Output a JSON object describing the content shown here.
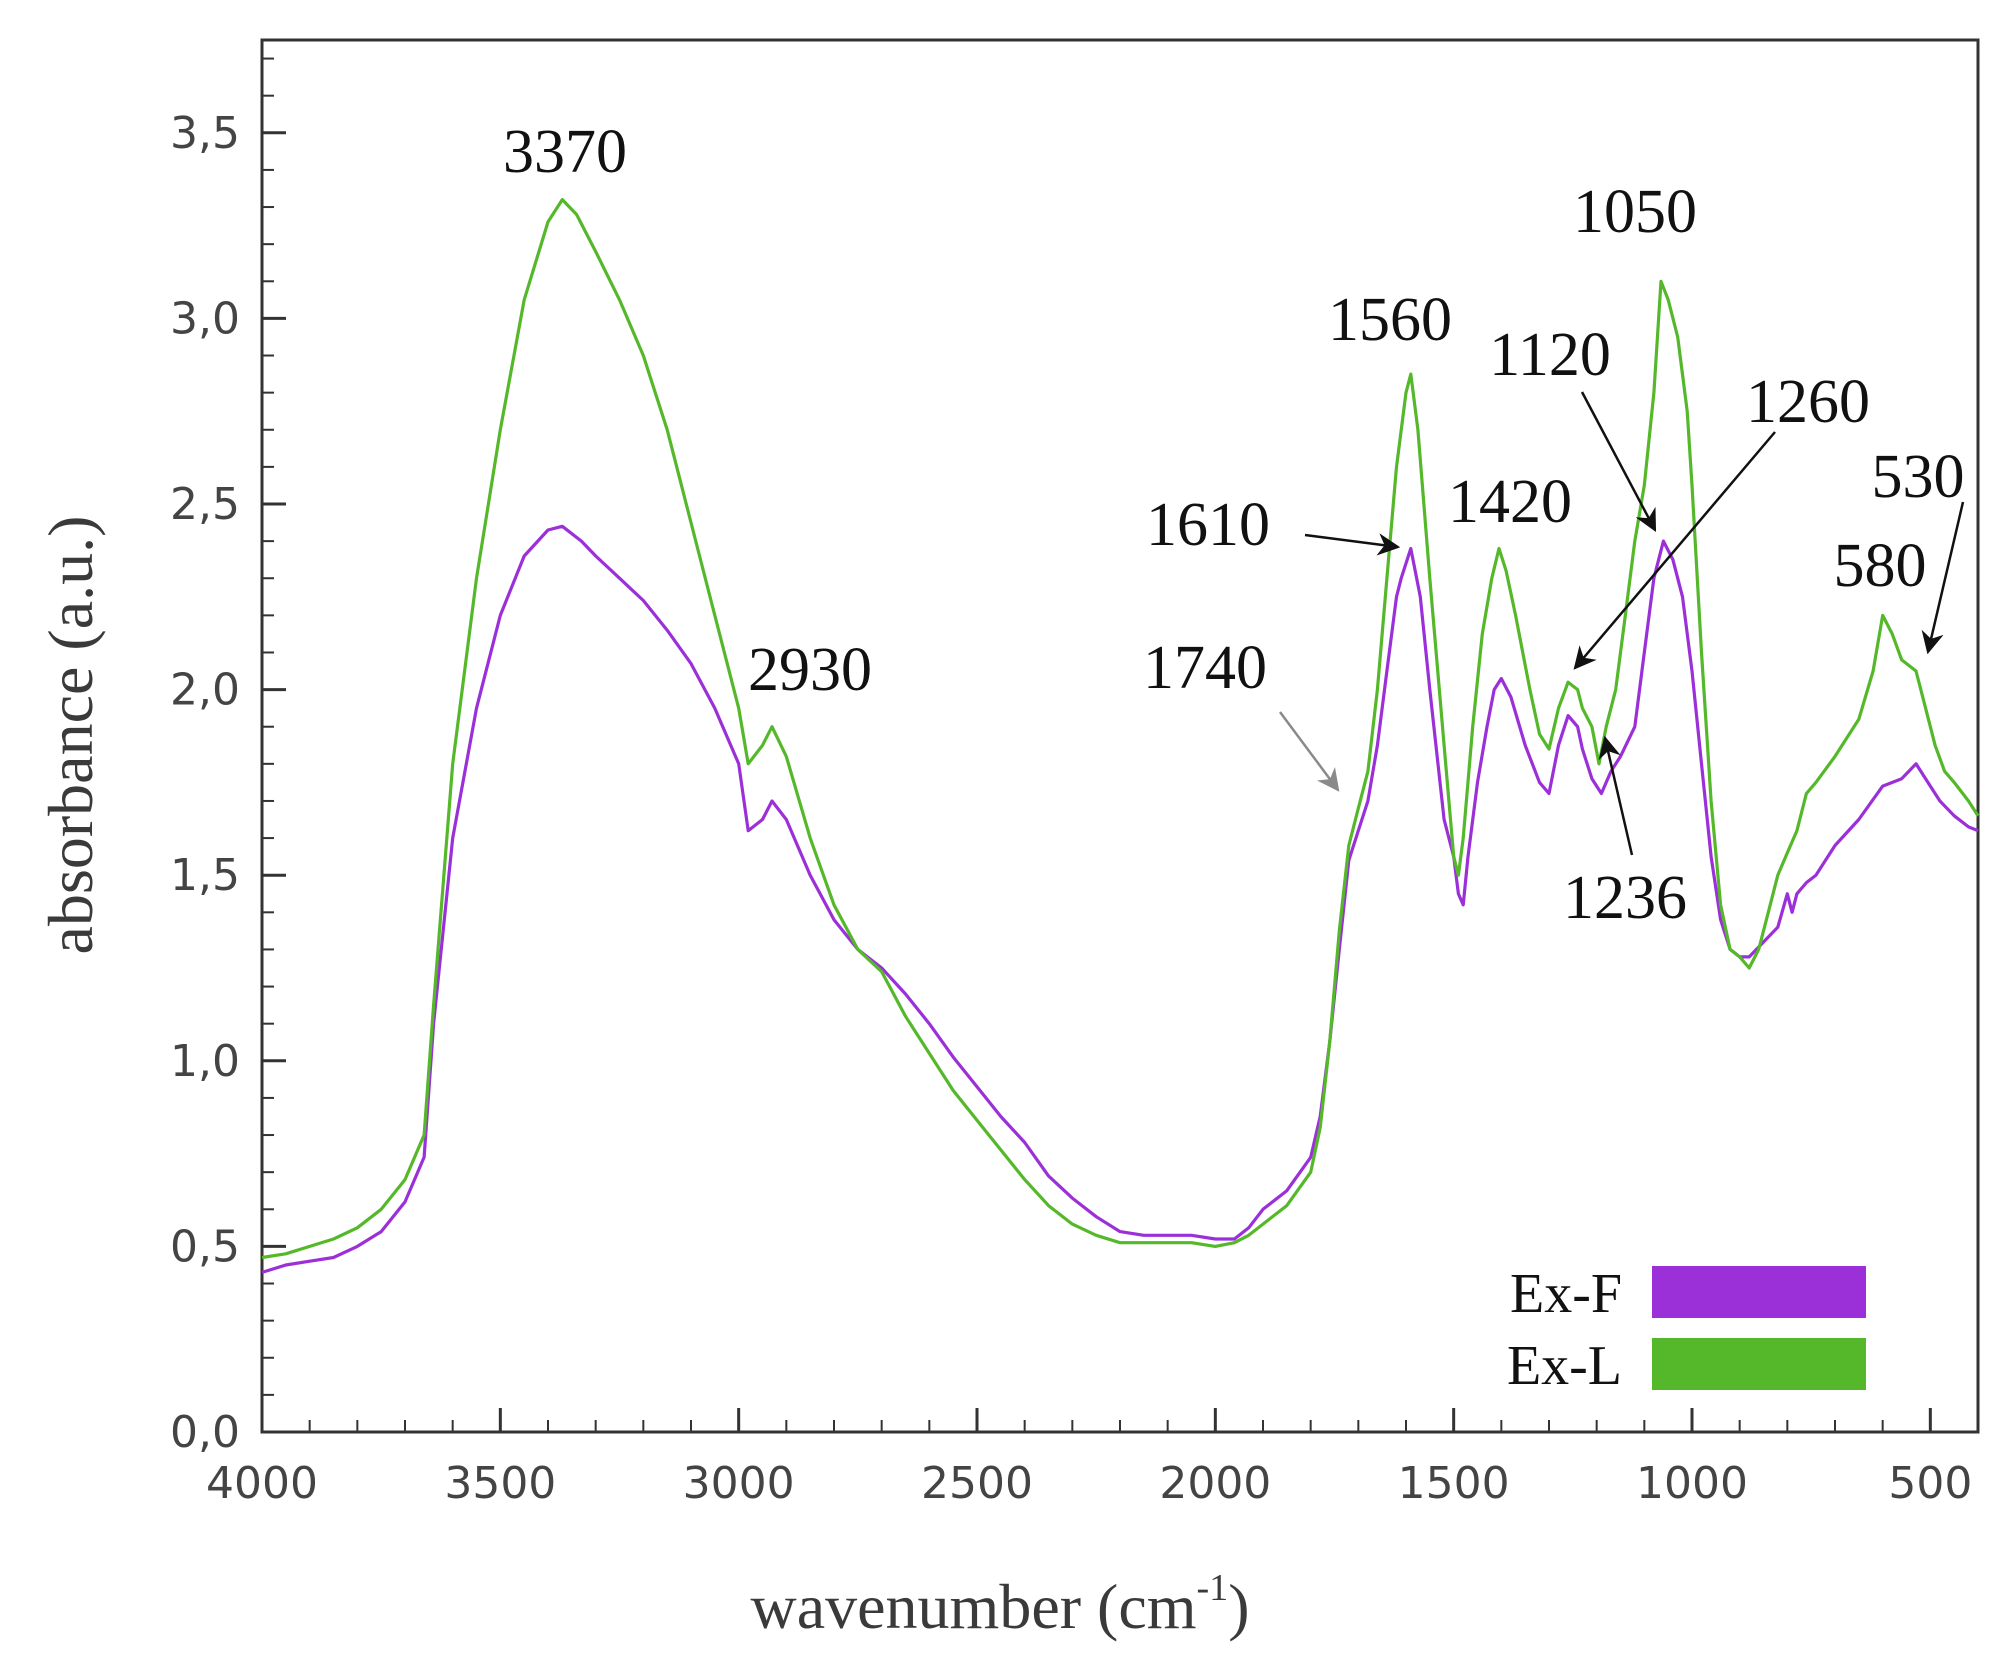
{
  "chart_data": {
    "type": "line",
    "xlabel": "wavenumber (cm",
    "xlabel_sup": "-1",
    "xlabel_close": ")",
    "ylabel": "absorbance (a.u.)",
    "xlim": [
      4000,
      400
    ],
    "ylim": [
      0.0,
      3.75
    ],
    "x_reversed": true,
    "grid": false,
    "legend_position": "bottom-right",
    "x_ticks": [
      {
        "value": 4000,
        "label": "4000"
      },
      {
        "value": 3500,
        "label": "3500"
      },
      {
        "value": 3000,
        "label": "3000"
      },
      {
        "value": 2500,
        "label": "2500"
      },
      {
        "value": 2000,
        "label": "2000"
      },
      {
        "value": 1500,
        "label": "1500"
      },
      {
        "value": 1000,
        "label": "1000"
      },
      {
        "value": 500,
        "label": "500"
      }
    ],
    "y_ticks": [
      {
        "value": 0.0,
        "label": "0,0"
      },
      {
        "value": 0.5,
        "label": "0,5"
      },
      {
        "value": 1.0,
        "label": "1,0"
      },
      {
        "value": 1.5,
        "label": "1,5"
      },
      {
        "value": 2.0,
        "label": "2,0"
      },
      {
        "value": 2.5,
        "label": "2,5"
      },
      {
        "value": 3.0,
        "label": "3,0"
      },
      {
        "value": 3.5,
        "label": "3,5"
      }
    ],
    "series": [
      {
        "name": "Ex-F",
        "color": "#9b30d9",
        "points": [
          [
            4000,
            0.43
          ],
          [
            3950,
            0.45
          ],
          [
            3900,
            0.46
          ],
          [
            3850,
            0.47
          ],
          [
            3800,
            0.5
          ],
          [
            3750,
            0.54
          ],
          [
            3700,
            0.62
          ],
          [
            3660,
            0.74
          ],
          [
            3640,
            1.1
          ],
          [
            3600,
            1.6
          ],
          [
            3550,
            1.95
          ],
          [
            3500,
            2.2
          ],
          [
            3450,
            2.36
          ],
          [
            3400,
            2.43
          ],
          [
            3370,
            2.44
          ],
          [
            3330,
            2.4
          ],
          [
            3300,
            2.36
          ],
          [
            3250,
            2.3
          ],
          [
            3200,
            2.24
          ],
          [
            3150,
            2.16
          ],
          [
            3100,
            2.07
          ],
          [
            3050,
            1.95
          ],
          [
            3000,
            1.8
          ],
          [
            2980,
            1.62
          ],
          [
            2950,
            1.65
          ],
          [
            2930,
            1.7
          ],
          [
            2900,
            1.65
          ],
          [
            2850,
            1.5
          ],
          [
            2800,
            1.38
          ],
          [
            2750,
            1.3
          ],
          [
            2700,
            1.25
          ],
          [
            2650,
            1.18
          ],
          [
            2600,
            1.1
          ],
          [
            2550,
            1.01
          ],
          [
            2500,
            0.93
          ],
          [
            2450,
            0.85
          ],
          [
            2400,
            0.78
          ],
          [
            2350,
            0.69
          ],
          [
            2300,
            0.63
          ],
          [
            2250,
            0.58
          ],
          [
            2200,
            0.54
          ],
          [
            2150,
            0.53
          ],
          [
            2100,
            0.53
          ],
          [
            2050,
            0.53
          ],
          [
            2000,
            0.52
          ],
          [
            1960,
            0.52
          ],
          [
            1930,
            0.55
          ],
          [
            1900,
            0.6
          ],
          [
            1850,
            0.65
          ],
          [
            1800,
            0.74
          ],
          [
            1780,
            0.85
          ],
          [
            1760,
            1.05
          ],
          [
            1740,
            1.3
          ],
          [
            1720,
            1.54
          ],
          [
            1700,
            1.62
          ],
          [
            1680,
            1.7
          ],
          [
            1660,
            1.85
          ],
          [
            1640,
            2.05
          ],
          [
            1620,
            2.25
          ],
          [
            1610,
            2.3
          ],
          [
            1590,
            2.38
          ],
          [
            1570,
            2.25
          ],
          [
            1550,
            2.0
          ],
          [
            1520,
            1.65
          ],
          [
            1500,
            1.55
          ],
          [
            1490,
            1.45
          ],
          [
            1480,
            1.42
          ],
          [
            1470,
            1.55
          ],
          [
            1450,
            1.75
          ],
          [
            1430,
            1.9
          ],
          [
            1415,
            2.0
          ],
          [
            1400,
            2.03
          ],
          [
            1380,
            1.98
          ],
          [
            1350,
            1.85
          ],
          [
            1320,
            1.75
          ],
          [
            1300,
            1.72
          ],
          [
            1280,
            1.85
          ],
          [
            1260,
            1.93
          ],
          [
            1240,
            1.9
          ],
          [
            1230,
            1.84
          ],
          [
            1210,
            1.76
          ],
          [
            1190,
            1.72
          ],
          [
            1170,
            1.78
          ],
          [
            1150,
            1.82
          ],
          [
            1120,
            1.9
          ],
          [
            1100,
            2.1
          ],
          [
            1080,
            2.3
          ],
          [
            1060,
            2.4
          ],
          [
            1040,
            2.35
          ],
          [
            1020,
            2.25
          ],
          [
            1000,
            2.05
          ],
          [
            980,
            1.8
          ],
          [
            960,
            1.55
          ],
          [
            940,
            1.38
          ],
          [
            920,
            1.3
          ],
          [
            900,
            1.28
          ],
          [
            880,
            1.28
          ],
          [
            850,
            1.32
          ],
          [
            820,
            1.36
          ],
          [
            800,
            1.45
          ],
          [
            790,
            1.4
          ],
          [
            780,
            1.45
          ],
          [
            760,
            1.48
          ],
          [
            740,
            1.5
          ],
          [
            700,
            1.58
          ],
          [
            650,
            1.65
          ],
          [
            600,
            1.74
          ],
          [
            560,
            1.76
          ],
          [
            530,
            1.8
          ],
          [
            510,
            1.76
          ],
          [
            480,
            1.7
          ],
          [
            450,
            1.66
          ],
          [
            420,
            1.63
          ],
          [
            400,
            1.62
          ]
        ]
      },
      {
        "name": "Ex-L",
        "color": "#55b82b",
        "points": [
          [
            4000,
            0.47
          ],
          [
            3950,
            0.48
          ],
          [
            3900,
            0.5
          ],
          [
            3850,
            0.52
          ],
          [
            3800,
            0.55
          ],
          [
            3750,
            0.6
          ],
          [
            3700,
            0.68
          ],
          [
            3660,
            0.8
          ],
          [
            3640,
            1.15
          ],
          [
            3600,
            1.8
          ],
          [
            3550,
            2.3
          ],
          [
            3500,
            2.7
          ],
          [
            3450,
            3.05
          ],
          [
            3400,
            3.26
          ],
          [
            3370,
            3.32
          ],
          [
            3340,
            3.28
          ],
          [
            3300,
            3.18
          ],
          [
            3250,
            3.05
          ],
          [
            3200,
            2.9
          ],
          [
            3150,
            2.7
          ],
          [
            3100,
            2.45
          ],
          [
            3050,
            2.2
          ],
          [
            3000,
            1.95
          ],
          [
            2980,
            1.8
          ],
          [
            2950,
            1.85
          ],
          [
            2930,
            1.9
          ],
          [
            2900,
            1.82
          ],
          [
            2850,
            1.6
          ],
          [
            2800,
            1.42
          ],
          [
            2750,
            1.3
          ],
          [
            2700,
            1.24
          ],
          [
            2650,
            1.12
          ],
          [
            2600,
            1.02
          ],
          [
            2550,
            0.92
          ],
          [
            2500,
            0.84
          ],
          [
            2450,
            0.76
          ],
          [
            2400,
            0.68
          ],
          [
            2350,
            0.61
          ],
          [
            2300,
            0.56
          ],
          [
            2250,
            0.53
          ],
          [
            2200,
            0.51
          ],
          [
            2150,
            0.51
          ],
          [
            2100,
            0.51
          ],
          [
            2050,
            0.51
          ],
          [
            2000,
            0.5
          ],
          [
            1960,
            0.51
          ],
          [
            1930,
            0.53
          ],
          [
            1900,
            0.56
          ],
          [
            1850,
            0.61
          ],
          [
            1800,
            0.7
          ],
          [
            1780,
            0.82
          ],
          [
            1760,
            1.05
          ],
          [
            1740,
            1.35
          ],
          [
            1720,
            1.58
          ],
          [
            1700,
            1.68
          ],
          [
            1680,
            1.78
          ],
          [
            1660,
            2.0
          ],
          [
            1640,
            2.3
          ],
          [
            1620,
            2.6
          ],
          [
            1600,
            2.8
          ],
          [
            1590,
            2.85
          ],
          [
            1575,
            2.7
          ],
          [
            1550,
            2.3
          ],
          [
            1520,
            1.85
          ],
          [
            1500,
            1.55
          ],
          [
            1490,
            1.5
          ],
          [
            1480,
            1.6
          ],
          [
            1460,
            1.9
          ],
          [
            1440,
            2.15
          ],
          [
            1420,
            2.3
          ],
          [
            1405,
            2.38
          ],
          [
            1390,
            2.32
          ],
          [
            1370,
            2.2
          ],
          [
            1340,
            2.0
          ],
          [
            1320,
            1.88
          ],
          [
            1300,
            1.84
          ],
          [
            1280,
            1.95
          ],
          [
            1260,
            2.02
          ],
          [
            1240,
            2.0
          ],
          [
            1230,
            1.95
          ],
          [
            1210,
            1.9
          ],
          [
            1195,
            1.8
          ],
          [
            1180,
            1.9
          ],
          [
            1160,
            2.0
          ],
          [
            1140,
            2.2
          ],
          [
            1120,
            2.4
          ],
          [
            1100,
            2.55
          ],
          [
            1080,
            2.8
          ],
          [
            1065,
            3.1
          ],
          [
            1050,
            3.05
          ],
          [
            1030,
            2.95
          ],
          [
            1010,
            2.75
          ],
          [
            1000,
            2.55
          ],
          [
            980,
            2.1
          ],
          [
            960,
            1.7
          ],
          [
            940,
            1.42
          ],
          [
            920,
            1.3
          ],
          [
            900,
            1.28
          ],
          [
            880,
            1.25
          ],
          [
            860,
            1.3
          ],
          [
            840,
            1.4
          ],
          [
            820,
            1.5
          ],
          [
            800,
            1.56
          ],
          [
            780,
            1.62
          ],
          [
            760,
            1.72
          ],
          [
            740,
            1.75
          ],
          [
            700,
            1.82
          ],
          [
            650,
            1.92
          ],
          [
            620,
            2.05
          ],
          [
            600,
            2.2
          ],
          [
            580,
            2.15
          ],
          [
            560,
            2.08
          ],
          [
            530,
            2.05
          ],
          [
            510,
            1.95
          ],
          [
            490,
            1.85
          ],
          [
            470,
            1.78
          ],
          [
            450,
            1.75
          ],
          [
            420,
            1.7
          ],
          [
            400,
            1.66
          ]
        ]
      }
    ],
    "legend": [
      {
        "name": "Ex-F",
        "color": "#9b30d9"
      },
      {
        "name": "Ex-L",
        "color": "#55b82b"
      }
    ],
    "annotations": [
      {
        "label": "3370",
        "x": 3370,
        "y": 3.32,
        "style": "text"
      },
      {
        "label": "2930",
        "x": 2930,
        "y": 1.9,
        "style": "text"
      },
      {
        "label": "1740",
        "x": 1740,
        "y": 1.72,
        "style": "arrow-gray"
      },
      {
        "label": "1610",
        "x": 1610,
        "y": 2.37,
        "style": "arrow"
      },
      {
        "label": "1560",
        "x": 1590,
        "y": 2.85,
        "style": "text"
      },
      {
        "label": "1420",
        "x": 1405,
        "y": 2.38,
        "style": "text"
      },
      {
        "label": "1120",
        "x": 1100,
        "y": 2.43,
        "style": "arrow"
      },
      {
        "label": "1050",
        "x": 1065,
        "y": 3.1,
        "style": "text"
      },
      {
        "label": "1260",
        "x": 1250,
        "y": 2.05,
        "style": "arrow"
      },
      {
        "label": "1236",
        "x": 1220,
        "y": 1.85,
        "style": "arrow"
      },
      {
        "label": "580",
        "x": 600,
        "y": 2.2,
        "style": "text"
      },
      {
        "label": "530",
        "x": 530,
        "y": 2.06,
        "style": "arrow"
      }
    ]
  }
}
